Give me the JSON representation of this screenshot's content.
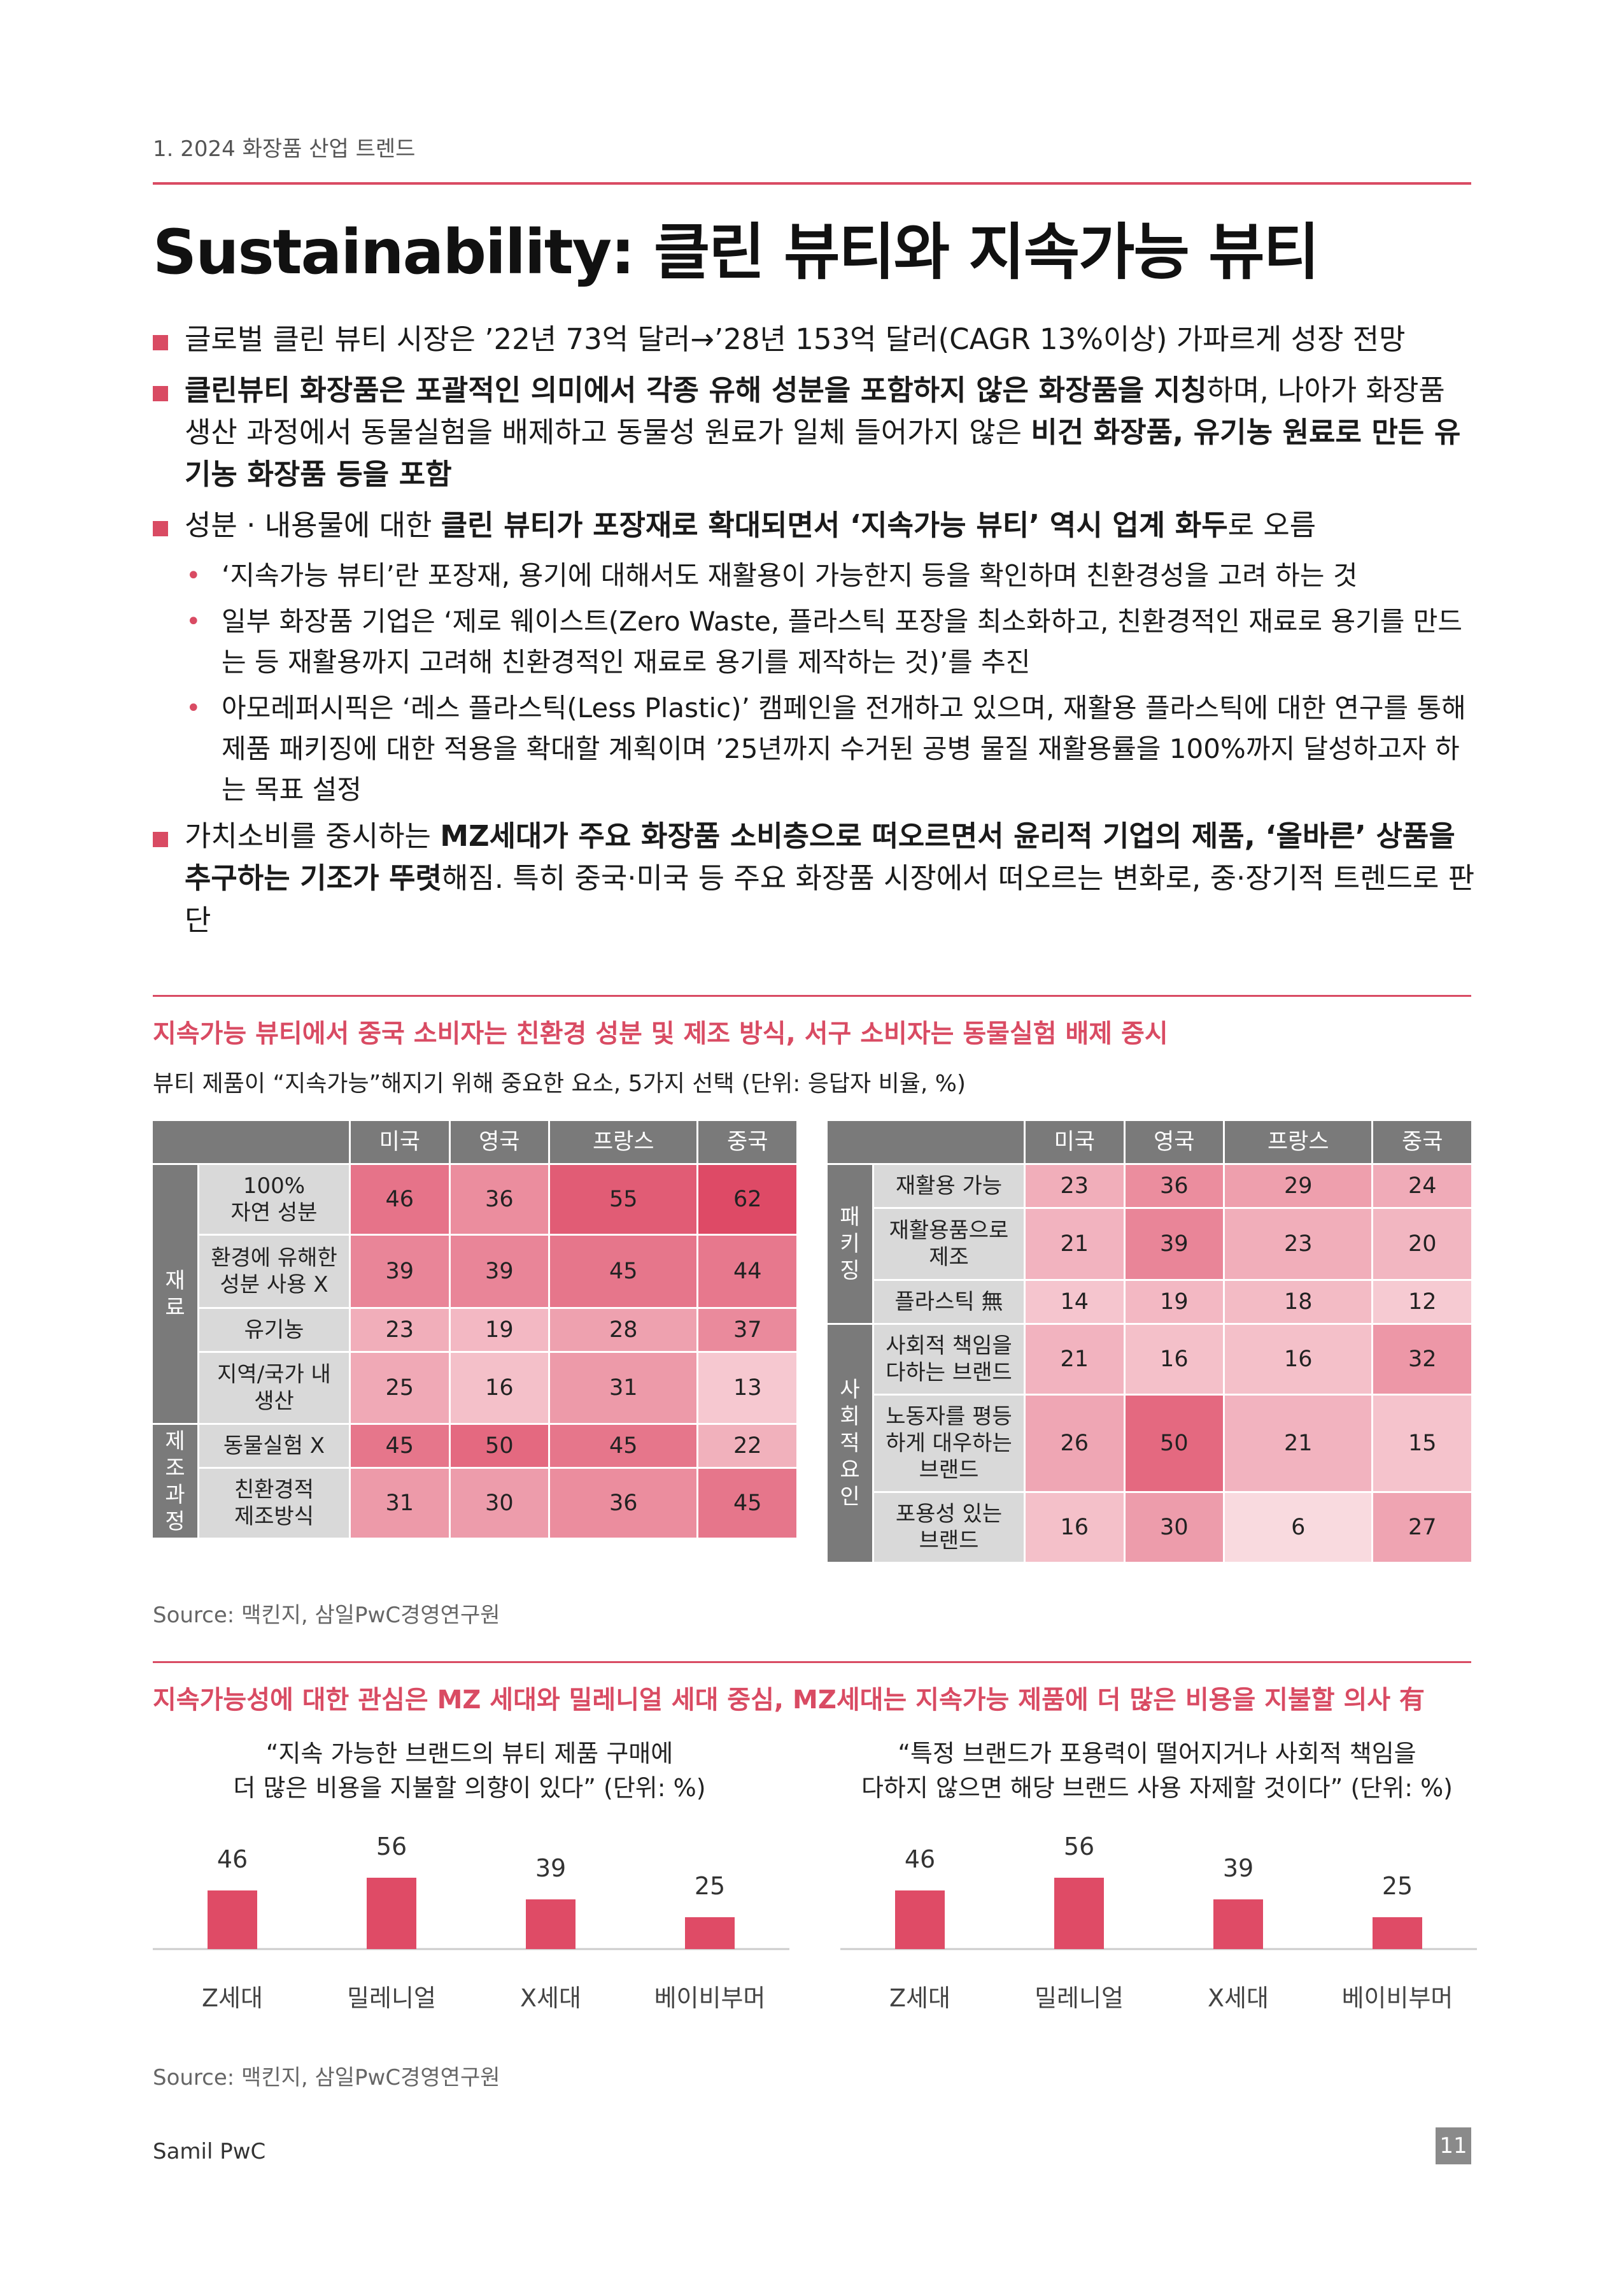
{
  "header": {
    "section_no": "1. 2024 화장품 산업 트렌드",
    "title": "Sustainability: 클린 뷰티와 지속가능 뷰티"
  },
  "bullets": {
    "b1": "글로벌 클린 뷰티 시장은 ’22년 73억 달러→’28년 153억 달러(CAGR 13%이상) 가파르게 성장 전망",
    "b2_bold": "클린뷰티 화장품은 포괄적인 의미에서 각종 유해 성분을 포함하지 않은 화장품을 지칭",
    "b2_text": "하며, 나아가 화장품 생산 과정에서 동물실험을 배제하고 동물성 원료가 일체 들어가지 않은 ",
    "b2_bold2": "비건 화장품, 유기농 원료로 만든 유기농 화장품 등을 포함",
    "b3_text": "성분 · 내용물에 대한 ",
    "b3_bold": "클린 뷰티가 포장재로 확대되면서 ‘지속가능 뷰티’ 역시 업계 화두",
    "b3_text2": "로 오름",
    "s1": "‘지속가능 뷰티’란 포장재, 용기에 대해서도 재활용이 가능한지 등을 확인하며 친환경성을 고려 하는 것",
    "s2": "일부 화장품 기업은 ‘제로 웨이스트(Zero Waste, 플라스틱 포장을 최소화하고, 친환경적인 재료로 용기를 만드는 등 재활용까지 고려해 친환경적인 재료로 용기를 제작하는 것)’를 추진",
    "s3": "아모레퍼시픽은 ‘레스 플라스틱(Less Plastic)’ 캠페인을 전개하고 있으며, 재활용 플라스틱에 대한 연구를 통해 제품 패키징에 대한 적용을 확대할 계획이며 ’25년까지 수거된 공병 물질 재활용률을 100%까지 달성하고자 하는 목표 설정",
    "b4_text": "가치소비를 중시하는 ",
    "b4_bold": "MZ세대가 주요 화장품 소비층으로 떠오르면서 윤리적 기업의 제품, ‘올바른’ 상품을 추구하는 기조가 뚜렷",
    "b4_text2": "해짐. 특히 중국·미국 등 주요 화장품 시장에서 떠오르는 변화로, 중·장기적 트렌드로 판단"
  },
  "section1": {
    "title": "지속가능 뷰티에서 중국 소비자는 친환경 성분 및 제조 방식, 서구 소비자는 동물실험 배제 중시",
    "subtitle": "뷰티 제품이 “지속가능”해지기 위해 중요한 요소, 5가지 선택 (단위: 응답자 비율, %)",
    "source": "Source: 맥킨지, 삼일PwC경영연구원"
  },
  "chart_data": [
    {
      "type": "table",
      "columns": [
        "미국",
        "영국",
        "프랑스",
        "중국"
      ],
      "groups": [
        {
          "name": "재료",
          "rows": [
            {
              "label": "100% 자연 성분",
              "values": [
                46,
                36,
                55,
                62
              ]
            },
            {
              "label": "환경에 유해한 성분 사용 X",
              "values": [
                39,
                39,
                45,
                44
              ]
            },
            {
              "label": "유기농",
              "values": [
                23,
                19,
                28,
                37
              ]
            },
            {
              "label": "지역/국가 내 생산",
              "values": [
                25,
                16,
                31,
                13
              ]
            }
          ]
        },
        {
          "name": "제조과정",
          "rows": [
            {
              "label": "동물실험 X",
              "values": [
                45,
                50,
                45,
                22
              ]
            },
            {
              "label": "친환경적 제조방식",
              "values": [
                31,
                30,
                36,
                45
              ]
            }
          ]
        }
      ]
    },
    {
      "type": "table",
      "columns": [
        "미국",
        "영국",
        "프랑스",
        "중국"
      ],
      "groups": [
        {
          "name": "패키징",
          "rows": [
            {
              "label": "재활용 가능",
              "values": [
                23,
                36,
                29,
                24
              ]
            },
            {
              "label": "재활용품으로 제조",
              "values": [
                21,
                39,
                23,
                20
              ]
            },
            {
              "label": "플라스틱 無",
              "values": [
                14,
                19,
                18,
                12
              ]
            }
          ]
        },
        {
          "name": "사회적요인",
          "rows": [
            {
              "label": "사회적 책임을 다하는 브랜드",
              "values": [
                21,
                16,
                16,
                32
              ]
            },
            {
              "label": "노동자를 평등하게 대우하는 브랜드",
              "values": [
                26,
                50,
                21,
                15
              ]
            },
            {
              "label": "포용성 있는 브랜드",
              "values": [
                16,
                30,
                6,
                27
              ]
            }
          ]
        }
      ]
    },
    {
      "type": "bar",
      "title": "“지속 가능한 브랜드의 뷰티 제품 구매에 더 많은 비용을 지불할 의향이 있다” (단위: %)",
      "categories": [
        "Z세대",
        "밀레니얼",
        "X세대",
        "베이비부머"
      ],
      "values": [
        46,
        56,
        39,
        25
      ],
      "color": "#df4b66"
    },
    {
      "type": "bar",
      "title": "“특정 브랜드가 포용력이 떨어지거나 사회적 책임을 다하지 않으면 해당 브랜드 사용 자제할 것이다” (단위: %)",
      "categories": [
        "Z세대",
        "밀레니얼",
        "X세대",
        "베이비부머"
      ],
      "values": [
        46,
        56,
        39,
        25
      ],
      "color": "#df4b66"
    }
  ],
  "section2": {
    "title": "지속가능성에 대한 관심은 MZ 세대와 밀레니얼 세대 중심, MZ세대는 지속가능 제품에 더 많은 비용을 지불할 의사 有",
    "caption_left_1": "“지속 가능한 브랜드의 뷰티 제품 구매에",
    "caption_left_2": "더 많은 비용을 지불할 의향이 있다” (단위: %)",
    "caption_right_1": "“특정 브랜드가 포용력이 떨어지거나 사회적 책임을",
    "caption_right_2": "다하지 않으면 해당 브랜드 사용 자제할 것이다” (단위: %)",
    "source": "Source: 맥킨지, 삼일PwC경영연구원"
  },
  "labels": {
    "t1_group1": "재료",
    "t1_group2": "제조과정",
    "t1_r1": "100%\n자연 성분",
    "t1_r2": "환경에 유해한\n성분 사용 X",
    "t1_r3": "유기농",
    "t1_r4": "지역/국가 내\n생산",
    "t1_r5": "동물실험 X",
    "t1_r6": "친환경적\n제조방식",
    "t2_group1": "패키징",
    "t2_group2": "사회적요인",
    "t2_r1": "재활용 가능",
    "t2_r2": "재활용품으로\n제조",
    "t2_r3": "플라스틱 無",
    "t2_r4": "사회적 책임을\n다하는 브랜드",
    "t2_r5": "노동자를 평등\n하게 대우하는\n브랜드",
    "t2_r6": "포용성 있는\n브랜드"
  },
  "footer": {
    "brand": "Samil PwC",
    "page": "11"
  },
  "colors": {
    "accent": "#d94b63",
    "header_gray": "#7a7a7a",
    "label_gray": "#d9d9d9"
  }
}
